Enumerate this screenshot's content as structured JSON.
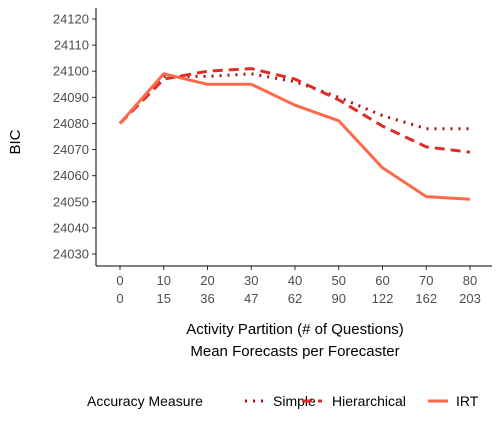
{
  "chart_data": {
    "type": "line",
    "ylabel": "BIC",
    "xlabel_line1": "Activity Partition (# of Questions)",
    "xlabel_line2": "Mean Forecasts per Forecaster",
    "x": [
      0,
      10,
      20,
      30,
      40,
      50,
      60,
      70,
      80
    ],
    "x_secondary": [
      0,
      15,
      36,
      47,
      62,
      90,
      122,
      162,
      203
    ],
    "ylim": [
      24025,
      24125
    ],
    "yticks": [
      24030,
      24040,
      24050,
      24060,
      24070,
      24080,
      24090,
      24100,
      24110,
      24120
    ],
    "grid": false,
    "legend_position": "bottom",
    "legend_title": "Accuracy Measure",
    "series": [
      {
        "name": "Simple",
        "dash": "dotted",
        "color": "#a50f15",
        "values": [
          24080,
          24098,
          24098,
          24099,
          24096,
          24090,
          24083,
          24078,
          24078
        ]
      },
      {
        "name": "Hierarchical",
        "dash": "dashed",
        "color": "#de2d26",
        "values": [
          24080,
          24097,
          24100,
          24101,
          24097,
          24089,
          24079,
          24071,
          24069
        ]
      },
      {
        "name": "IRT",
        "dash": "solid",
        "color": "#fb6a4a",
        "values": [
          24080,
          24099,
          24095,
          24095,
          24087,
          24081,
          24063,
          24052,
          24051
        ]
      }
    ]
  }
}
